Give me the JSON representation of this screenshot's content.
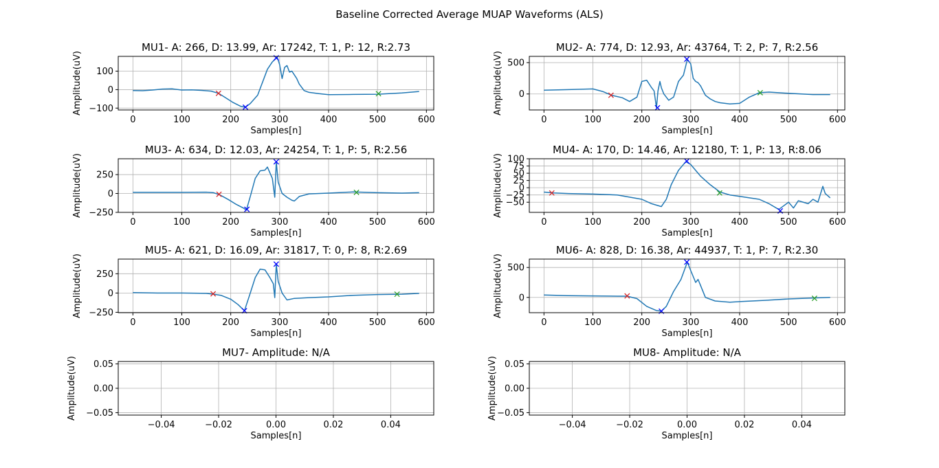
{
  "figure": {
    "title": "Baseline Corrected Average MUAP Waveforms (ALS)"
  },
  "colors": {
    "line": "#1f77b4",
    "start_marker": "#d62728",
    "end_marker": "#2ca02c",
    "peak_marker": "#0000ff",
    "grid": "#b0b0b0"
  },
  "chart_data": [
    {
      "type": "line",
      "title": "MU1- A: 266, D: 13.99, Ar: 17242, T: 1, P: 12, R:2.73",
      "xlabel": "Samples[n]",
      "ylabel": "Amplitude(uV)",
      "xlim": [
        -30,
        615
      ],
      "ylim": [
        -110,
        180
      ],
      "xticks": [
        0,
        100,
        200,
        300,
        400,
        500,
        600
      ],
      "yticks": [
        -100,
        0,
        100
      ],
      "grid": true,
      "series": [
        {
          "x": [
            0,
            20,
            40,
            60,
            80,
            100,
            120,
            140,
            160,
            175,
            190,
            205,
            220,
            230,
            240,
            255,
            265,
            275,
            285,
            295,
            300,
            305,
            310,
            315,
            320,
            325,
            330,
            335,
            340,
            350,
            360,
            380,
            400,
            450,
            500,
            550,
            585
          ],
          "y": [
            -5,
            -6,
            -2,
            3,
            4,
            -2,
            -1,
            -4,
            -8,
            -20,
            -45,
            -70,
            -90,
            -95,
            -75,
            -30,
            40,
            110,
            150,
            175,
            135,
            60,
            120,
            130,
            95,
            100,
            80,
            60,
            30,
            -5,
            -15,
            -22,
            -27,
            -26,
            -25,
            -18,
            -10
          ]
        }
      ],
      "markers": [
        {
          "x": 175,
          "y": -20,
          "kind": "start",
          "symbol": "x"
        },
        {
          "x": 230,
          "y": -95,
          "kind": "peak",
          "symbol": "x"
        },
        {
          "x": 293,
          "y": 172,
          "kind": "peak",
          "symbol": "x"
        },
        {
          "x": 502,
          "y": -22,
          "kind": "end",
          "symbol": "x"
        }
      ]
    },
    {
      "type": "line",
      "title": "MU2- A: 774, D: 12.93, Ar: 43764, T: 2, P: 7, R:2.56",
      "xlabel": "Samples[n]",
      "ylabel": "Amplitude(uV)",
      "xlim": [
        -30,
        615
      ],
      "ylim": [
        -255,
        600
      ],
      "xticks": [
        0,
        100,
        200,
        300,
        400,
        500,
        600
      ],
      "yticks": [
        0,
        500
      ],
      "grid": true,
      "series": [
        {
          "x": [
            0,
            50,
            100,
            120,
            138,
            160,
            175,
            190,
            200,
            210,
            220,
            225,
            230,
            233,
            237,
            240,
            245,
            255,
            265,
            275,
            285,
            293,
            300,
            305,
            310,
            315,
            320,
            330,
            340,
            350,
            360,
            380,
            400,
            420,
            440,
            460,
            500,
            550,
            585
          ],
          "y": [
            60,
            70,
            80,
            40,
            -20,
            -60,
            -120,
            -50,
            200,
            220,
            100,
            50,
            -220,
            50,
            200,
            100,
            0,
            -100,
            -50,
            200,
            300,
            550,
            480,
            250,
            200,
            180,
            130,
            -20,
            -80,
            -120,
            -140,
            -160,
            -150,
            -50,
            20,
            30,
            10,
            -10,
            -10
          ]
        }
      ],
      "markers": [
        {
          "x": 137,
          "y": -20,
          "kind": "start",
          "symbol": "x"
        },
        {
          "x": 232,
          "y": -220,
          "kind": "peak",
          "symbol": "x"
        },
        {
          "x": 292,
          "y": 555,
          "kind": "peak",
          "symbol": "x"
        },
        {
          "x": 442,
          "y": 20,
          "kind": "end",
          "symbol": "x"
        }
      ]
    },
    {
      "type": "line",
      "title": "MU3- A: 634, D: 12.03, Ar: 24254, T: 1, P: 5, R:2.56",
      "xlabel": "Samples[n]",
      "ylabel": "Amplitude(uV)",
      "xlim": [
        -30,
        615
      ],
      "ylim": [
        -250,
        460
      ],
      "xticks": [
        0,
        100,
        200,
        300,
        400,
        500,
        600
      ],
      "yticks": [
        -250,
        0,
        250
      ],
      "grid": true,
      "series": [
        {
          "x": [
            0,
            50,
            100,
            150,
            165,
            178,
            195,
            210,
            225,
            232,
            240,
            250,
            260,
            270,
            275,
            285,
            290,
            293,
            297,
            305,
            315,
            325,
            330,
            340,
            360,
            400,
            450,
            500,
            550,
            585
          ],
          "y": [
            15,
            15,
            15,
            18,
            10,
            -20,
            -80,
            -140,
            -190,
            -220,
            -40,
            200,
            300,
            310,
            350,
            200,
            -50,
            420,
            150,
            0,
            -50,
            -90,
            -100,
            -40,
            -5,
            5,
            20,
            10,
            5,
            10
          ]
        }
      ],
      "markers": [
        {
          "x": 176,
          "y": -10,
          "kind": "start",
          "symbol": "x"
        },
        {
          "x": 233,
          "y": -210,
          "kind": "peak",
          "symbol": "x"
        },
        {
          "x": 293,
          "y": 420,
          "kind": "peak",
          "symbol": "x"
        },
        {
          "x": 457,
          "y": 15,
          "kind": "end",
          "symbol": "x"
        }
      ]
    },
    {
      "type": "line",
      "title": "MU4- A: 170, D: 14.46, Ar: 12180, T: 1, P: 13, R:8.06",
      "xlabel": "Samples[n]",
      "ylabel": "Amplitude(uV)",
      "xlim": [
        -30,
        615
      ],
      "ylim": [
        -85,
        100
      ],
      "xticks": [
        0,
        100,
        200,
        300,
        400,
        500,
        600
      ],
      "yticks": [
        -50,
        -25,
        0,
        25,
        50,
        75,
        100
      ],
      "grid": true,
      "series": [
        {
          "x": [
            0,
            20,
            50,
            100,
            150,
            200,
            220,
            240,
            250,
            260,
            275,
            290,
            300,
            320,
            340,
            360,
            380,
            400,
            420,
            440,
            460,
            480,
            500,
            510,
            520,
            540,
            550,
            560,
            570,
            575,
            585
          ],
          "y": [
            -15,
            -18,
            -20,
            -22,
            -25,
            -40,
            -55,
            -65,
            -40,
            10,
            60,
            90,
            80,
            40,
            10,
            -15,
            -25,
            -30,
            -35,
            -40,
            -55,
            -75,
            -50,
            -70,
            -45,
            -55,
            -40,
            -50,
            5,
            -20,
            -35
          ]
        }
      ],
      "markers": [
        {
          "x": 16,
          "y": -18,
          "kind": "start",
          "symbol": "x"
        },
        {
          "x": 292,
          "y": 92,
          "kind": "peak",
          "symbol": "x"
        },
        {
          "x": 359,
          "y": -18,
          "kind": "end",
          "symbol": "x"
        },
        {
          "x": 483,
          "y": -80,
          "kind": "peak",
          "symbol": "x"
        }
      ]
    },
    {
      "type": "line",
      "title": "MU5- A: 621, D: 16.09, Ar: 31817, T: 0, P: 8, R:2.69",
      "xlabel": "Samples[n]",
      "ylabel": "Amplitude(uV)",
      "xlim": [
        -30,
        615
      ],
      "ylim": [
        -255,
        440
      ],
      "xticks": [
        0,
        100,
        200,
        300,
        400,
        500,
        600
      ],
      "yticks": [
        -250,
        0,
        250
      ],
      "grid": true,
      "series": [
        {
          "x": [
            0,
            50,
            100,
            150,
            165,
            180,
            200,
            215,
            228,
            240,
            250,
            260,
            270,
            280,
            287,
            290,
            293,
            297,
            305,
            315,
            330,
            360,
            400,
            450,
            500,
            550,
            585
          ],
          "y": [
            5,
            0,
            0,
            -5,
            -15,
            -30,
            -80,
            -150,
            -230,
            0,
            200,
            310,
            300,
            200,
            120,
            -60,
            370,
            150,
            0,
            -90,
            -70,
            -60,
            -50,
            -30,
            -20,
            -15,
            -5
          ]
        }
      ],
      "markers": [
        {
          "x": 164,
          "y": -10,
          "kind": "start",
          "symbol": "x"
        },
        {
          "x": 228,
          "y": -230,
          "kind": "peak",
          "symbol": "x"
        },
        {
          "x": 293,
          "y": 375,
          "kind": "peak",
          "symbol": "x"
        },
        {
          "x": 540,
          "y": -15,
          "kind": "end",
          "symbol": "x"
        }
      ]
    },
    {
      "type": "line",
      "title": "MU6- A: 828, D: 16.38, Ar: 44937, T: 1, P: 7, R:2.30",
      "xlabel": "Samples[n]",
      "ylabel": "Amplitude(uV)",
      "xlim": [
        -30,
        615
      ],
      "ylim": [
        -255,
        640
      ],
      "xticks": [
        0,
        100,
        200,
        300,
        400,
        500,
        600
      ],
      "yticks": [
        0,
        500
      ],
      "grid": true,
      "series": [
        {
          "x": [
            0,
            50,
            100,
            150,
            170,
            190,
            210,
            230,
            240,
            250,
            265,
            280,
            293,
            300,
            310,
            315,
            320,
            330,
            350,
            380,
            400,
            450,
            500,
            550,
            585
          ],
          "y": [
            40,
            30,
            25,
            20,
            20,
            -20,
            -150,
            -220,
            -230,
            -150,
            100,
            300,
            590,
            450,
            250,
            300,
            200,
            0,
            -60,
            -80,
            -70,
            -50,
            -25,
            -10,
            0
          ]
        }
      ],
      "markers": [
        {
          "x": 170,
          "y": 25,
          "kind": "start",
          "symbol": "x"
        },
        {
          "x": 240,
          "y": -230,
          "kind": "peak",
          "symbol": "x"
        },
        {
          "x": 292,
          "y": 590,
          "kind": "peak",
          "symbol": "x"
        },
        {
          "x": 553,
          "y": -15,
          "kind": "end",
          "symbol": "x"
        }
      ]
    },
    {
      "type": "line",
      "title": "MU7- Amplitude: N/A",
      "xlabel": "Samples[n]",
      "ylabel": "Amplitude(uV)",
      "xlim": [
        -0.055,
        0.055
      ],
      "ylim": [
        -0.055,
        0.055
      ],
      "xticks": [
        -0.04,
        -0.02,
        0.0,
        0.02,
        0.04
      ],
      "yticks": [
        -0.05,
        0.0,
        0.05
      ],
      "xtick_labels": [
        "−0.04",
        "−0.02",
        "0.00",
        "0.02",
        "0.04"
      ],
      "ytick_labels": [
        "−0.05",
        "0.00",
        "0.05"
      ],
      "grid": true,
      "series": [],
      "markers": []
    },
    {
      "type": "line",
      "title": "MU8- Amplitude: N/A",
      "xlabel": "Samples[n]",
      "ylabel": "Amplitude(uV)",
      "xlim": [
        -0.055,
        0.055
      ],
      "ylim": [
        -0.055,
        0.055
      ],
      "xticks": [
        -0.04,
        -0.02,
        0.0,
        0.02,
        0.04
      ],
      "yticks": [
        -0.05,
        0.0,
        0.05
      ],
      "xtick_labels": [
        "−0.04",
        "−0.02",
        "0.00",
        "0.02",
        "0.04"
      ],
      "ytick_labels": [
        "−0.05",
        "0.00",
        "0.05"
      ],
      "grid": true,
      "series": [],
      "markers": []
    }
  ]
}
